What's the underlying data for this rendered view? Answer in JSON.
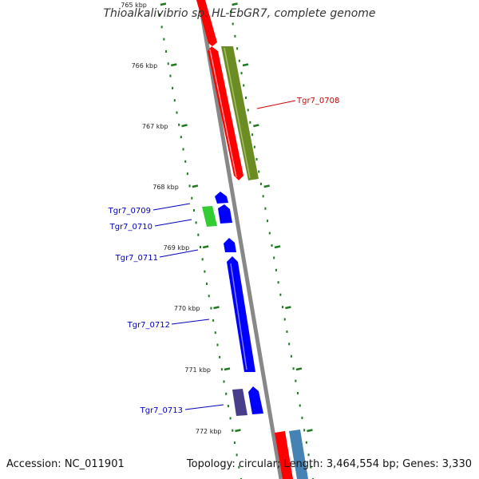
{
  "title": "Thioalkalivibrio sp. HL-EbGR7, complete genome",
  "footer": {
    "accession": "Accession: NC_011901",
    "summary": "Topology: circular; Length: 3,464,554 bp; Genes: 3,330"
  },
  "colors": {
    "backbone": "#8a8a8a",
    "tick_dots": "#1f7a1f",
    "label_red": "#cc0000",
    "label_blue": "#0000bb",
    "gene_red": "#ff0000",
    "gene_olive": "#6b8c23",
    "gene_blue": "#0000ff",
    "gene_green": "#33cc33",
    "gene_purple": "#483d8b",
    "gene_steelblue": "#4682b4"
  },
  "ticks": [
    {
      "label": "765 kbp"
    },
    {
      "label": "766 kbp"
    },
    {
      "label": "767 kbp"
    },
    {
      "label": "768 kbp"
    },
    {
      "label": "769 kbp"
    },
    {
      "label": "770 kbp"
    },
    {
      "label": "771 kbp"
    },
    {
      "label": "772 kbp"
    }
  ],
  "gene_labels": [
    {
      "text": "Tgr7_0708",
      "color": "red"
    },
    {
      "text": "Tgr7_0709",
      "color": "blue"
    },
    {
      "text": "Tgr7_0710",
      "color": "blue"
    },
    {
      "text": "Tgr7_0711",
      "color": "blue"
    },
    {
      "text": "Tgr7_0712",
      "color": "blue"
    },
    {
      "text": "Tgr7_0713",
      "color": "blue"
    }
  ]
}
